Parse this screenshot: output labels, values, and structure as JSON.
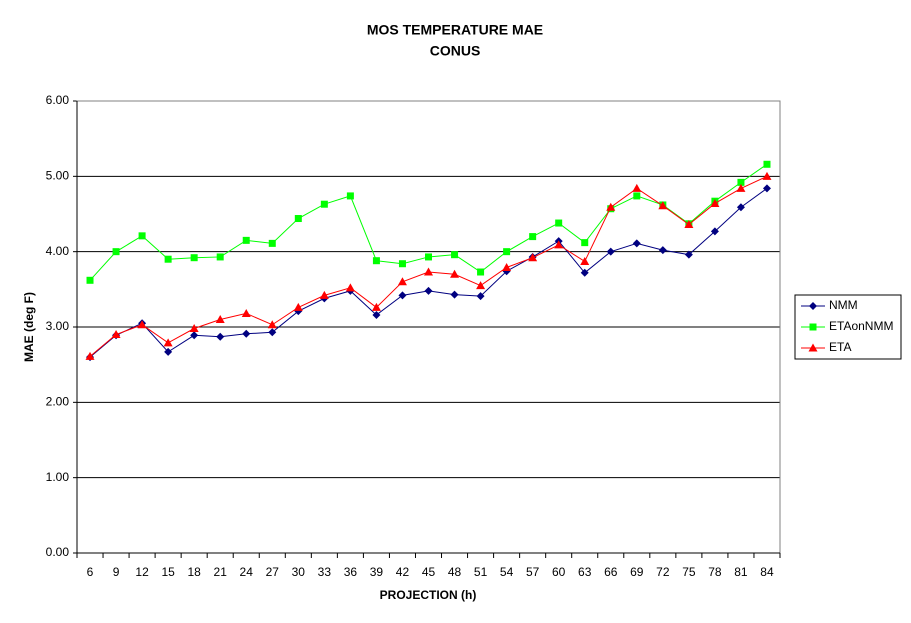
{
  "chart_data": {
    "type": "line",
    "title": "MOS TEMPERATURE MAE",
    "subtitle": "CONUS",
    "x_label": "PROJECTION (h)",
    "y_label": "MAE (deg F)",
    "categories": [
      6,
      9,
      12,
      15,
      18,
      21,
      24,
      27,
      30,
      33,
      36,
      39,
      42,
      45,
      48,
      51,
      54,
      57,
      60,
      63,
      66,
      69,
      72,
      75,
      78,
      81,
      84
    ],
    "ylim": [
      0,
      6
    ],
    "yticks": [
      {
        "value": 0,
        "label": "0.00"
      },
      {
        "value": 1,
        "label": "1.00"
      },
      {
        "value": 2,
        "label": "2.00"
      },
      {
        "value": 3,
        "label": "3.00"
      },
      {
        "value": 4,
        "label": "4.00"
      },
      {
        "value": 5,
        "label": "5.00"
      },
      {
        "value": 6,
        "label": "6.00"
      }
    ],
    "grid": true,
    "legend": "right",
    "series": [
      {
        "name": "NMM",
        "color": "#000080",
        "marker": "diamond",
        "values": [
          2.6,
          2.89,
          3.05,
          2.67,
          2.89,
          2.87,
          2.91,
          2.93,
          3.21,
          3.38,
          3.48,
          3.16,
          3.42,
          3.48,
          3.43,
          3.41,
          3.74,
          3.93,
          4.14,
          3.72,
          4.0,
          4.11,
          4.02,
          3.96,
          4.27,
          4.59,
          4.84
        ]
      },
      {
        "name": "ETAonNMM",
        "color": "#00ff00",
        "marker": "square",
        "values": [
          3.62,
          4.0,
          4.21,
          3.9,
          3.92,
          3.93,
          4.15,
          4.11,
          4.44,
          4.63,
          4.74,
          3.88,
          3.84,
          3.93,
          3.96,
          3.73,
          4.0,
          4.2,
          4.38,
          4.12,
          4.57,
          4.74,
          4.62,
          4.37,
          4.67,
          4.92,
          5.16
        ]
      },
      {
        "name": "ETA",
        "color": "#ff0000",
        "marker": "triangle",
        "values": [
          2.61,
          2.9,
          3.03,
          2.79,
          2.98,
          3.1,
          3.18,
          3.03,
          3.26,
          3.42,
          3.52,
          3.26,
          3.6,
          3.73,
          3.7,
          3.55,
          3.79,
          3.92,
          4.09,
          3.87,
          4.59,
          4.84,
          4.61,
          4.36,
          4.64,
          4.84,
          5.0
        ]
      }
    ]
  }
}
